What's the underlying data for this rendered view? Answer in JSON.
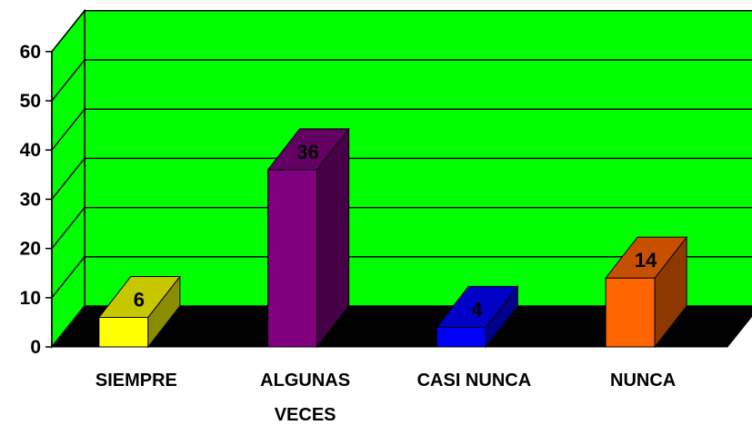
{
  "chart_data": {
    "type": "bar",
    "style": "3d-column",
    "categories": [
      "SIEMPRE",
      "ALGUNAS VECES",
      "CASI NUNCA",
      "NUNCA"
    ],
    "category_lines": [
      [
        "SIEMPRE"
      ],
      [
        "ALGUNAS",
        "VECES"
      ],
      [
        "CASI NUNCA"
      ],
      [
        "NUNCA"
      ]
    ],
    "values": [
      6,
      36,
      4,
      14
    ],
    "data_labels": [
      "6",
      "36",
      "4",
      "14"
    ],
    "ylim": [
      0,
      60
    ],
    "yticks": [
      0,
      10,
      20,
      30,
      40,
      50,
      60
    ],
    "ytick_labels": [
      "0",
      "10",
      "20",
      "30",
      "40",
      "50",
      "60"
    ],
    "grid": true,
    "legend": false,
    "colors": {
      "wall": "#00ff00",
      "floor": "#000000",
      "bars": [
        "#ffff00",
        "#800080",
        "#0000ff",
        "#ff6600"
      ]
    }
  }
}
